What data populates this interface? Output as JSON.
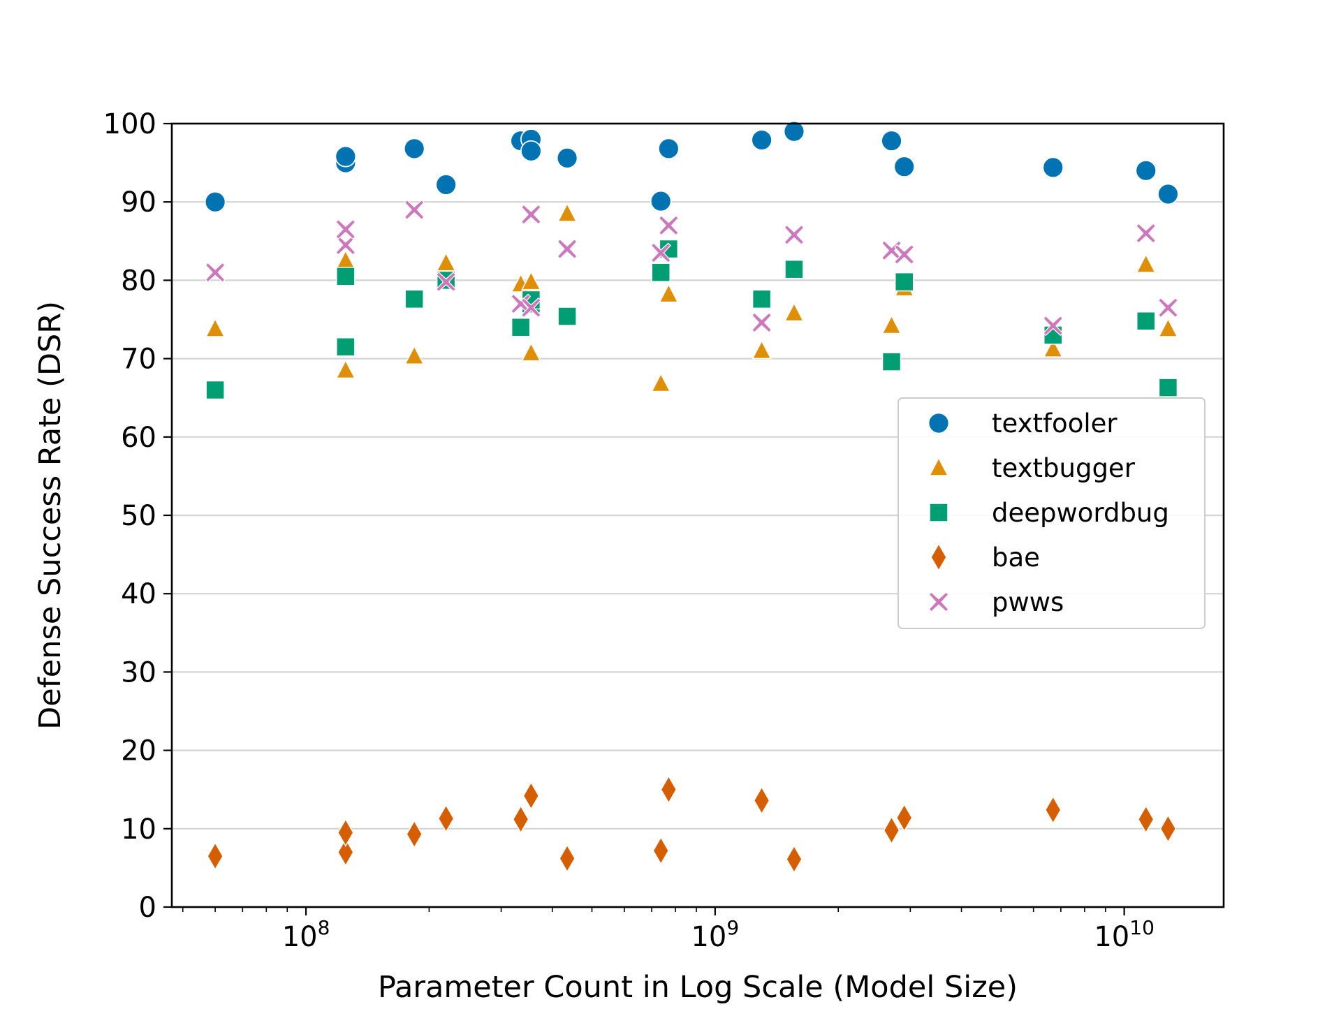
{
  "chart_data": {
    "type": "scatter",
    "title": "",
    "xlabel": "Parameter Count in Log Scale (Model Size)",
    "ylabel": "Defense Success Rate (DSR)",
    "xscale": "log",
    "xlim": [
      47000000,
      17500000000
    ],
    "ylim": [
      0,
      100
    ],
    "x_ticks": [
      {
        "value": 100000000,
        "base": "10",
        "exp": "8"
      },
      {
        "value": 1000000000,
        "base": "10",
        "exp": "9"
      },
      {
        "value": 10000000000,
        "base": "10",
        "exp": "10"
      }
    ],
    "y_ticks": [
      "0",
      "10",
      "20",
      "30",
      "40",
      "50",
      "60",
      "70",
      "80",
      "90",
      "100"
    ],
    "grid": "horizontal",
    "legend_position": "center-right",
    "x": [
      60000000,
      125000000,
      125000000,
      184000000,
      220000000,
      335000000,
      355000000,
      355000000,
      435000000,
      737000000,
      770000000,
      1300000000,
      1560000000,
      2700000000,
      2900000000,
      6700000000,
      11300000000,
      12800000000
    ],
    "series": [
      {
        "name": "textfooler",
        "marker": "circle",
        "color": "#0173b2",
        "values": [
          90,
          95,
          95.8,
          96.8,
          92.2,
          97.8,
          98,
          96.5,
          95.6,
          90.1,
          96.8,
          97.9,
          99,
          97.8,
          94.5,
          94.4,
          94,
          91
        ]
      },
      {
        "name": "textbugger",
        "marker": "triangle",
        "color": "#de8f05",
        "values": [
          73.8,
          68.5,
          82.5,
          70.3,
          82.2,
          79.5,
          70.7,
          79.8,
          88.5,
          66.8,
          78.2,
          71,
          75.8,
          74.2,
          79,
          71.2,
          82,
          73.8
        ]
      },
      {
        "name": "deepwordbug",
        "marker": "square",
        "color": "#029e73",
        "values": [
          66,
          71.5,
          80.5,
          77.6,
          80,
          74,
          77,
          77.5,
          75.4,
          81,
          84,
          77.6,
          81.4,
          69.6,
          79.8,
          73,
          74.8,
          66.3
        ]
      },
      {
        "name": "bae",
        "marker": "diamond",
        "color": "#d55e00",
        "values": [
          6.5,
          7,
          9.5,
          9.3,
          11.3,
          11.2,
          14.2,
          14.2,
          6.2,
          7.2,
          15,
          13.6,
          6.1,
          9.8,
          11.4,
          12.4,
          11.2,
          10
        ]
      },
      {
        "name": "pwws",
        "marker": "x",
        "color": "#cc78bc",
        "values": [
          81,
          84.5,
          86.5,
          89,
          79.8,
          77,
          76.5,
          88.4,
          84,
          83.5,
          87,
          74.6,
          85.8,
          83.8,
          83.3,
          74.2,
          86,
          76.5
        ]
      }
    ]
  }
}
